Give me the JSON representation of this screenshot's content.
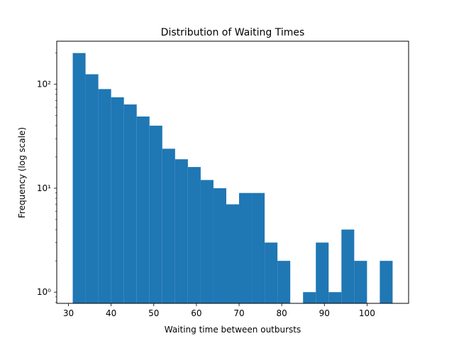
{
  "chart_data": {
    "type": "bar",
    "title": "Distribution of Waiting Times",
    "xlabel": "Waiting time between outbursts",
    "ylabel": "Frequency (log scale)",
    "y_scale": "log",
    "xlim": [
      27.25,
      109.75
    ],
    "ylim": [
      0.78,
      260
    ],
    "grid": false,
    "bar_color": "#1f77b4",
    "bin_edges": [
      31,
      34,
      37,
      40,
      43,
      46,
      49,
      52,
      55,
      58,
      61,
      64,
      67,
      70,
      73,
      76,
      79,
      82,
      85,
      88,
      91,
      94,
      97,
      100,
      103,
      106
    ],
    "values": [
      200,
      125,
      90,
      75,
      64,
      49,
      40,
      24,
      19,
      16,
      12,
      10,
      7,
      9,
      9,
      3,
      2,
      0,
      1,
      3,
      1,
      4,
      2,
      0,
      2
    ],
    "x_ticks": [
      30,
      40,
      50,
      60,
      70,
      80,
      90,
      100
    ],
    "x_tick_labels": [
      "30",
      "40",
      "50",
      "60",
      "70",
      "80",
      "90",
      "100"
    ],
    "y_ticks": [
      1,
      10,
      100
    ],
    "y_tick_labels": [
      "10⁰",
      "10¹",
      "10²"
    ]
  }
}
